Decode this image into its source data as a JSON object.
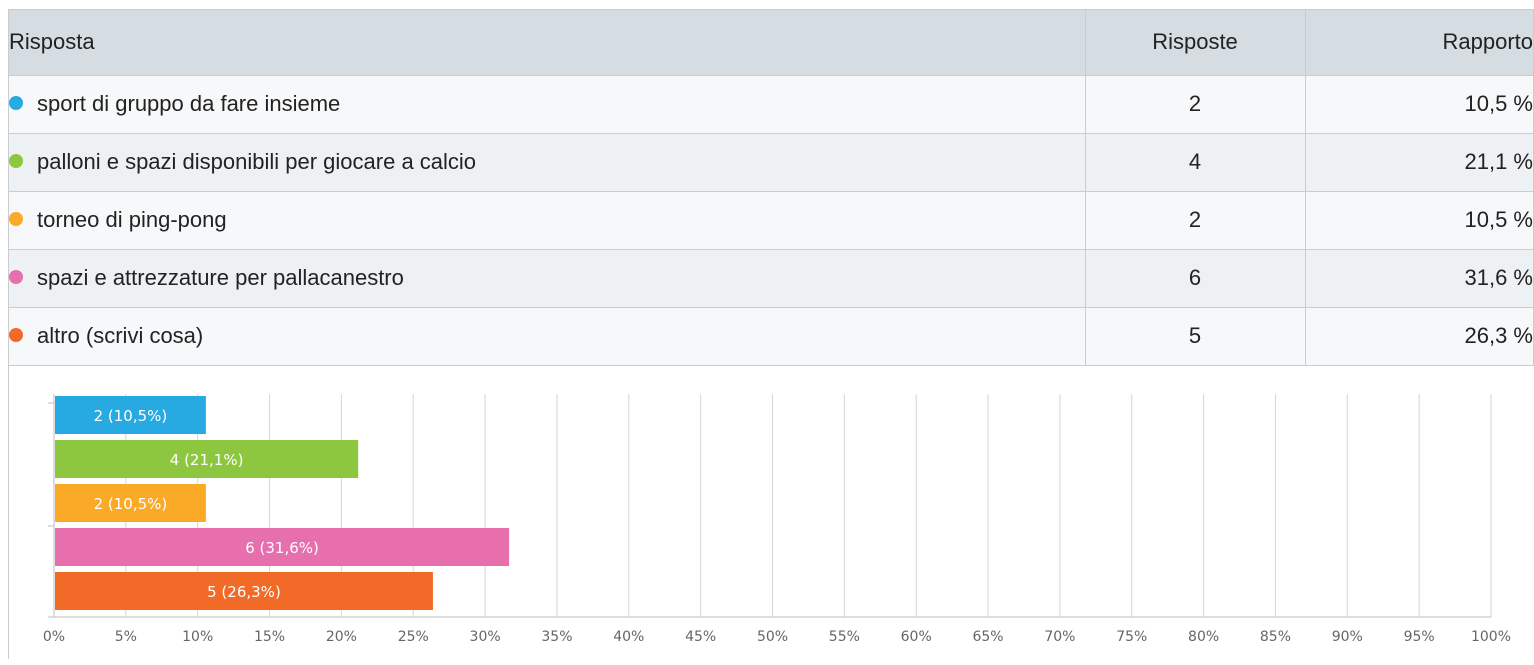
{
  "table": {
    "headers": {
      "answer": "Risposta",
      "count": "Risposte",
      "ratio": "Rapporto"
    },
    "rows": [
      {
        "label": "sport di gruppo da fare insieme",
        "count": "2",
        "ratio": "10,5 %",
        "color": "#27aae1"
      },
      {
        "label": "palloni e spazi disponibili per giocare a calcio",
        "count": "4",
        "ratio": "21,1 %",
        "color": "#8dc63f"
      },
      {
        "label": "torneo di ping-pong",
        "count": "2",
        "ratio": "10,5 %",
        "color": "#fbaa27"
      },
      {
        "label": "spazi e attrezzature per pallacanestro",
        "count": "6",
        "ratio": "31,6 %",
        "color": "#e86fae"
      },
      {
        "label": "altro (scrivi cosa)",
        "count": "5",
        "ratio": "26,3 %",
        "color": "#f26a27"
      }
    ]
  },
  "chart_data": {
    "type": "bar",
    "orientation": "horizontal",
    "categories": [
      "sport di gruppo da fare insieme",
      "palloni e spazi disponibili per giocare a calcio",
      "torneo di ping-pong",
      "spazi e attrezzature per pallacanestro",
      "altro (scrivi cosa)"
    ],
    "values": [
      10.5,
      21.1,
      10.5,
      31.6,
      26.3
    ],
    "data_labels": [
      "2 (10,5%)",
      "4 (21,1%)",
      "2 (10,5%)",
      "6 (31,6%)",
      "5 (26,3%)"
    ],
    "colors": [
      "#27aae1",
      "#8dc63f",
      "#fbaa27",
      "#e86fae",
      "#f26a27"
    ],
    "x_ticks": [
      "0%",
      "5%",
      "10%",
      "15%",
      "20%",
      "25%",
      "30%",
      "35%",
      "40%",
      "45%",
      "50%",
      "55%",
      "60%",
      "65%",
      "70%",
      "75%",
      "80%",
      "85%",
      "90%",
      "95%",
      "100%"
    ],
    "xlim": [
      0,
      100
    ],
    "grid": true,
    "legend": "none"
  }
}
